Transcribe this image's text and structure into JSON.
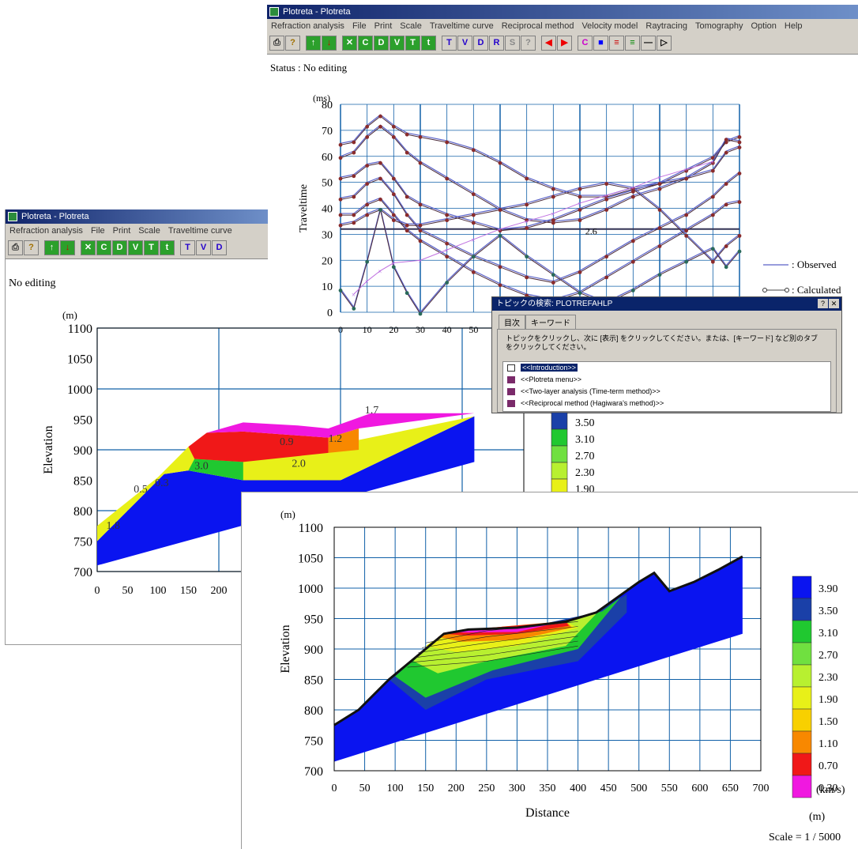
{
  "app": {
    "title": "Plotreta - Plotreta",
    "menus": [
      "Refraction analysis",
      "File",
      "Print",
      "Scale",
      "Traveltime curve",
      "Reciprocal method",
      "Velocity model",
      "Raytracing",
      "Tomography",
      "Option",
      "Help"
    ],
    "toolbar_buttons": [
      "print",
      "help",
      "up",
      "down",
      "cross",
      "circle",
      "D",
      "V",
      "T",
      "t1",
      "Tr",
      "Vs",
      "Dr",
      "Rp",
      "Su",
      "?",
      "left",
      "right",
      "Cell",
      "color",
      "palette1",
      "palette2",
      "line",
      "cursor"
    ]
  },
  "colors": {
    "line": "#5a62c8",
    "calc": "#8a2c2c",
    "grid": "#1060a8",
    "tomo_low": "#ff00ff",
    "tomo_high": "#0010ff"
  },
  "win_back": {
    "status": "Status : No editing",
    "chart_data": {
      "type": "line",
      "ylabel": "Traveltime",
      "yunit": "(ms)",
      "ylim": [
        0,
        80
      ],
      "yticks": [
        "80",
        "70",
        "60",
        "50",
        "40",
        "30",
        "20",
        "10",
        "0"
      ],
      "xticks": [
        "0",
        "10",
        "20",
        "30",
        "40",
        "50"
      ],
      "xlim": [
        0,
        150
      ],
      "legend": [
        {
          "label": ": Observed"
        },
        {
          "label": ": Calculated"
        }
      ],
      "annotation": "2.6",
      "series": [
        {
          "x": [
            0,
            5,
            10,
            15,
            20,
            25,
            30,
            40,
            50,
            60,
            70,
            80,
            90,
            100,
            110,
            120,
            130,
            140,
            145,
            150
          ],
          "y": [
            65,
            66,
            72,
            76,
            72,
            69,
            68,
            66,
            63,
            58,
            52,
            48,
            45,
            45,
            48,
            50,
            55,
            60,
            66,
            68
          ]
        },
        {
          "x": [
            0,
            5,
            10,
            15,
            20,
            25,
            30,
            40,
            50,
            60,
            70,
            80,
            90,
            100,
            110,
            120,
            130,
            140,
            145,
            150
          ],
          "y": [
            60,
            62,
            68,
            72,
            68,
            62,
            58,
            52,
            46,
            40,
            36,
            35,
            36,
            40,
            45,
            48,
            52,
            58,
            67,
            66
          ]
        },
        {
          "x": [
            0,
            5,
            10,
            15,
            20,
            25,
            30,
            40,
            50,
            60,
            70,
            80,
            90,
            100,
            110,
            120,
            130,
            140,
            145,
            150
          ],
          "y": [
            52,
            53,
            57,
            58,
            52,
            45,
            42,
            38,
            35,
            32,
            33,
            36,
            40,
            44,
            47,
            50,
            52,
            55,
            62,
            64
          ]
        },
        {
          "x": [
            0,
            5,
            10,
            15,
            20,
            25,
            30,
            40,
            50,
            60,
            70,
            80,
            90,
            100,
            110,
            120,
            130,
            140,
            145,
            150
          ],
          "y": [
            44,
            45,
            50,
            52,
            46,
            38,
            32,
            27,
            22,
            18,
            14,
            12,
            16,
            22,
            28,
            33,
            38,
            45,
            50,
            54
          ]
        },
        {
          "x": [
            0,
            5,
            10,
            15,
            20,
            25,
            30,
            40,
            50,
            60,
            70,
            80,
            90,
            100,
            110,
            120,
            130,
            140,
            145,
            150
          ],
          "y": [
            38,
            38,
            42,
            44,
            38,
            32,
            28,
            22,
            16,
            11,
            7,
            5,
            8,
            14,
            20,
            26,
            32,
            38,
            42,
            43
          ]
        },
        {
          "x": [
            0,
            5,
            10,
            15,
            20,
            25,
            30,
            40,
            50,
            60,
            70,
            80,
            90,
            100,
            110,
            120,
            130,
            140,
            145,
            150
          ],
          "y": [
            34,
            35,
            38,
            40,
            36,
            34,
            34,
            36,
            38,
            40,
            42,
            45,
            48,
            50,
            48,
            40,
            30,
            20,
            26,
            30
          ]
        },
        {
          "x": [
            0,
            5,
            10,
            15,
            20,
            25,
            30,
            40,
            50,
            60,
            70,
            80,
            90,
            100,
            110,
            120,
            130,
            140,
            145,
            150
          ],
          "y": [
            9,
            2,
            20,
            40,
            18,
            8,
            0,
            12,
            22,
            30,
            22,
            15,
            8,
            4,
            9,
            15,
            20,
            25,
            18,
            24
          ]
        }
      ],
      "observed_x_marks": {
        "x": [
          5,
          10,
          15,
          20,
          30,
          40,
          50,
          60,
          70,
          80,
          90,
          100,
          110,
          120,
          130,
          140
        ],
        "y": [
          7,
          12,
          16,
          19,
          20,
          24,
          28,
          32,
          35,
          38,
          42,
          45,
          48,
          52,
          55,
          58
        ]
      }
    }
  },
  "win_left": {
    "status": "No editing",
    "ylabel": "Elevation",
    "yunit": "(m)",
    "yticks": [
      "1100",
      "1050",
      "1000",
      "950",
      "900",
      "850",
      "800",
      "750",
      "700"
    ],
    "xticks": [
      "0",
      "50",
      "100",
      "150",
      "200"
    ],
    "layer_labels": [
      "0.9",
      "1.2",
      "1.7",
      "3.0",
      "2.0",
      "0.5",
      "0.3",
      "1.8"
    ]
  },
  "help_dialog": {
    "title": "トピックの検索: PLOTREFAHLP",
    "tabs": [
      "目次",
      "キーワード"
    ],
    "instructions": "トピックをクリックし、次に [表示] をクリックしてください。または、[キーワード] など別のタブをクリックしてください。",
    "items": [
      "<<Introduction>>",
      "<<Plotreta menu>>",
      "<<Two-layer analysis (Time-term method)>>",
      "<<Reciprocal method (Hagiwara's method)>>"
    ]
  },
  "partial_legend": {
    "values": [
      "3.50",
      "3.10",
      "2.70",
      "2.30",
      "1.90"
    ]
  },
  "win_front": {
    "ylabel": "Elevation",
    "yunit": "(m)",
    "xlabel": "Distance",
    "xunit": "(m)",
    "yticks": [
      "1100",
      "1050",
      "1000",
      "950",
      "900",
      "850",
      "800",
      "750",
      "700"
    ],
    "xticks": [
      "0",
      "50",
      "100",
      "150",
      "200",
      "250",
      "300",
      "350",
      "400",
      "450",
      "500",
      "550",
      "600",
      "650",
      "700"
    ],
    "legend_unit": "(km/s)",
    "scale": "Scale = 1 / 5000",
    "legend": [
      {
        "label": "3.90",
        "color": "#0a14f0"
      },
      {
        "label": "3.50",
        "color": "#1a40a8"
      },
      {
        "label": "3.10",
        "color": "#20c830"
      },
      {
        "label": "2.70",
        "color": "#70e040"
      },
      {
        "label": "2.30",
        "color": "#b8f030"
      },
      {
        "label": "1.90",
        "color": "#e8f018"
      },
      {
        "label": "1.50",
        "color": "#f8d000"
      },
      {
        "label": "1.10",
        "color": "#f88800"
      },
      {
        "label": "0.70",
        "color": "#f01818"
      },
      {
        "label": "0.30",
        "color": "#f018e0"
      }
    ]
  }
}
